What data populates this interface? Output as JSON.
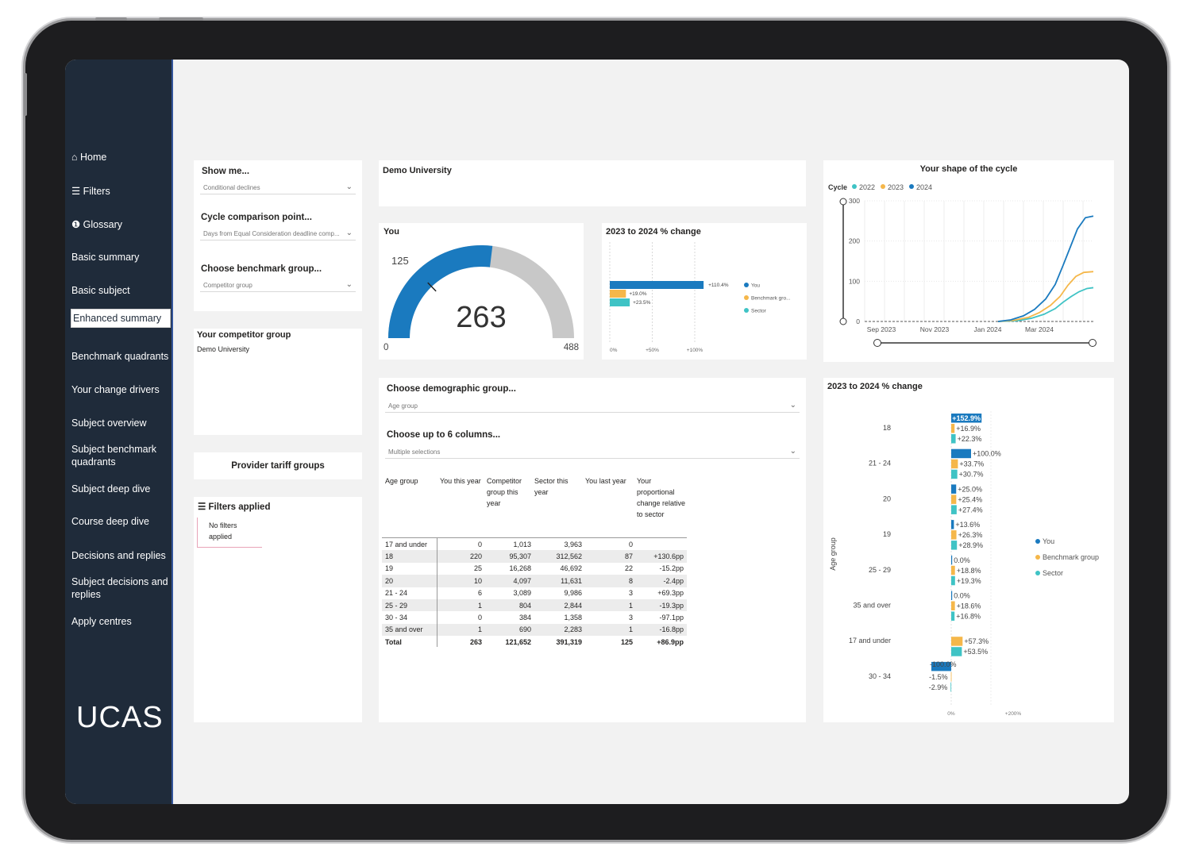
{
  "nav": [
    "⌂ Home",
    "☰ Filters",
    "❶ Glossary",
    "Basic summary",
    "Basic subject",
    "Enhanced summary",
    "Benchmark quadrants",
    "Your change drivers",
    "Subject overview",
    "Subject benchmark quadrants",
    "Subject deep dive",
    "Course deep dive",
    "Decisions and replies",
    "Subject decisions and replies",
    "Apply centres"
  ],
  "nav_active": "Enhanced summary",
  "logo": "UCAS",
  "filters": {
    "show_me_label": "Show me...",
    "show_me_value": "Conditional declines",
    "cycle_label": "Cycle comparison point...",
    "cycle_value": "Days from Equal Consideration deadline comp...",
    "benchmark_label": "Choose benchmark group...",
    "benchmark_value": "Competitor group"
  },
  "competitor": {
    "title": "Your competitor group",
    "value": "Demo University"
  },
  "tariff": {
    "title": "Provider tariff groups"
  },
  "applied": {
    "title": "☰ Filters applied",
    "line1": "No filters",
    "line2": "applied"
  },
  "provider": {
    "name": "Demo University"
  },
  "gauge": {
    "title": "You",
    "value": "263",
    "min": "0",
    "max": "488",
    "target": "125"
  },
  "change_small": {
    "title": "2023 to 2024 % change",
    "bars": [
      {
        "label": "+110.4%",
        "value": 110.4,
        "color": "#1a7abf"
      },
      {
        "label": "+19.0%",
        "value": 19.0,
        "color": "#f5b74a"
      },
      {
        "label": "+23.5%",
        "value": 23.5,
        "color": "#3fc3c5"
      }
    ],
    "axis": [
      "0%",
      "+50%",
      "+100%"
    ],
    "legend": [
      "You",
      "Benchmark gro...",
      "Sector"
    ]
  },
  "shape": {
    "title": "Your shape of the cycle",
    "legend_title": "Cycle",
    "legend": [
      "2022",
      "2023",
      "2024"
    ],
    "yticks": [
      "300",
      "200",
      "100",
      "0"
    ],
    "xticks": [
      "Sep 2023",
      "Nov 2023",
      "Jan 2024",
      "Mar 2024"
    ]
  },
  "demo": {
    "group_label": "Choose demographic group...",
    "group_value": "Age group",
    "cols_label": "Choose up to 6 columns...",
    "cols_value": "Multiple selections"
  },
  "table": {
    "headers": [
      "Age group",
      "You this year",
      "Competitor group this year",
      "Sector this year",
      "You last year",
      "Your proportional change relative to sector"
    ],
    "rows": [
      [
        "17 and under",
        "0",
        "1,013",
        "3,963",
        "0",
        ""
      ],
      [
        "18",
        "220",
        "95,307",
        "312,562",
        "87",
        "+130.6pp"
      ],
      [
        "19",
        "25",
        "16,268",
        "46,692",
        "22",
        "-15.2pp"
      ],
      [
        "20",
        "10",
        "4,097",
        "11,631",
        "8",
        "-2.4pp"
      ],
      [
        "21 - 24",
        "6",
        "3,089",
        "9,986",
        "3",
        "+69.3pp"
      ],
      [
        "25 - 29",
        "1",
        "804",
        "2,844",
        "1",
        "-19.3pp"
      ],
      [
        "30 - 34",
        "0",
        "384",
        "1,358",
        "3",
        "-97.1pp"
      ],
      [
        "35 and over",
        "1",
        "690",
        "2,283",
        "1",
        "-16.8pp"
      ],
      [
        "Total",
        "263",
        "121,652",
        "391,319",
        "125",
        "+86.9pp"
      ]
    ]
  },
  "change_big": {
    "title": "2023 to 2024 % change",
    "ylabel": "Age group",
    "groups": [
      {
        "name": "18",
        "you": "+152.9%",
        "bench": "+16.9%",
        "sector": "+22.3%"
      },
      {
        "name": "21 - 24",
        "you": "+100.0%",
        "bench": "+33.7%",
        "sector": "+30.7%"
      },
      {
        "name": "20",
        "you": "+25.0%",
        "bench": "+25.4%",
        "sector": "+27.4%"
      },
      {
        "name": "19",
        "you": "+13.6%",
        "bench": "+26.3%",
        "sector": "+28.9%"
      },
      {
        "name": "25 - 29",
        "you": "0.0%",
        "bench": "+18.8%",
        "sector": "+19.3%"
      },
      {
        "name": "35 and over",
        "you": "0.0%",
        "bench": "+18.6%",
        "sector": "+16.8%"
      },
      {
        "name": "17 and under",
        "you": "",
        "bench": "+57.3%",
        "sector": "+53.5%"
      },
      {
        "name": "30 - 34",
        "you": "-100.0%",
        "bench": "-1.5%",
        "sector": "-2.9%"
      }
    ],
    "axis": [
      "0%",
      "+200%"
    ],
    "legend": [
      "You",
      "Benchmark group",
      "Sector"
    ]
  },
  "chart_data": [
    {
      "type": "bar",
      "title": "2023 to 2024 % change",
      "categories": [
        "You",
        "Benchmark gro...",
        "Sector"
      ],
      "values": [
        110.4,
        19.0,
        23.5
      ]
    },
    {
      "type": "line",
      "title": "Your shape of the cycle",
      "x": [
        "Sep 2023",
        "Nov 2023",
        "Jan 2024",
        "Mar 2024"
      ],
      "ylim": [
        0,
        300
      ],
      "series": [
        {
          "name": "2022",
          "values": [
            0,
            0,
            10,
            85
          ]
        },
        {
          "name": "2023",
          "values": [
            0,
            0,
            15,
            125
          ]
        },
        {
          "name": "2024",
          "values": [
            0,
            0,
            20,
            263
          ]
        }
      ]
    },
    {
      "type": "bar",
      "title": "2023 to 2024 % change",
      "ylabel": "Age group",
      "categories": [
        "18",
        "21 - 24",
        "20",
        "19",
        "25 - 29",
        "35 and over",
        "17 and under",
        "30 - 34"
      ],
      "series": [
        {
          "name": "You",
          "values": [
            152.9,
            100.0,
            25.0,
            13.6,
            0.0,
            0.0,
            null,
            -100.0
          ]
        },
        {
          "name": "Benchmark group",
          "values": [
            16.9,
            33.7,
            25.4,
            26.3,
            18.8,
            18.6,
            57.3,
            -1.5
          ]
        },
        {
          "name": "Sector",
          "values": [
            22.3,
            30.7,
            27.4,
            28.9,
            19.3,
            16.8,
            53.5,
            -2.9
          ]
        }
      ]
    }
  ]
}
